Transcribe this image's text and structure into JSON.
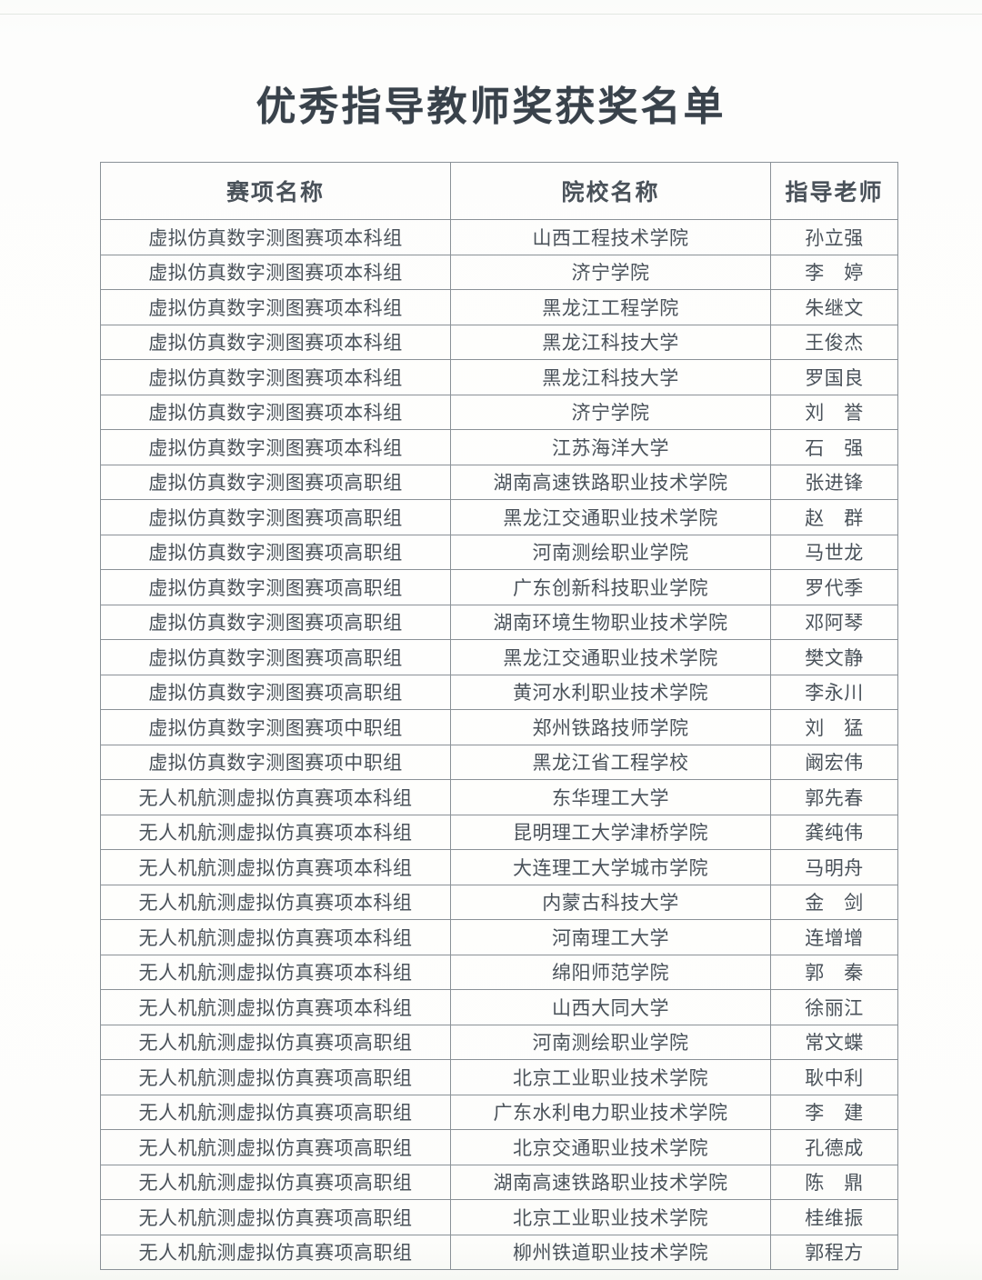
{
  "page": {
    "title": "优秀指导教师奖获奖名单"
  },
  "table": {
    "columns": [
      "赛项名称",
      "院校名称",
      "指导老师"
    ],
    "rows": [
      [
        "虚拟仿真数字测图赛项本科组",
        "山西工程技术学院",
        "孙立强"
      ],
      [
        "虚拟仿真数字测图赛项本科组",
        "济宁学院",
        "李　婷"
      ],
      [
        "虚拟仿真数字测图赛项本科组",
        "黑龙江工程学院",
        "朱继文"
      ],
      [
        "虚拟仿真数字测图赛项本科组",
        "黑龙江科技大学",
        "王俊杰"
      ],
      [
        "虚拟仿真数字测图赛项本科组",
        "黑龙江科技大学",
        "罗国良"
      ],
      [
        "虚拟仿真数字测图赛项本科组",
        "济宁学院",
        "刘　誉"
      ],
      [
        "虚拟仿真数字测图赛项本科组",
        "江苏海洋大学",
        "石　强"
      ],
      [
        "虚拟仿真数字测图赛项高职组",
        "湖南高速铁路职业技术学院",
        "张进锋"
      ],
      [
        "虚拟仿真数字测图赛项高职组",
        "黑龙江交通职业技术学院",
        "赵　群"
      ],
      [
        "虚拟仿真数字测图赛项高职组",
        "河南测绘职业学院",
        "马世龙"
      ],
      [
        "虚拟仿真数字测图赛项高职组",
        "广东创新科技职业学院",
        "罗代季"
      ],
      [
        "虚拟仿真数字测图赛项高职组",
        "湖南环境生物职业技术学院",
        "邓阿琴"
      ],
      [
        "虚拟仿真数字测图赛项高职组",
        "黑龙江交通职业技术学院",
        "樊文静"
      ],
      [
        "虚拟仿真数字测图赛项高职组",
        "黄河水利职业技术学院",
        "李永川"
      ],
      [
        "虚拟仿真数字测图赛项中职组",
        "郑州铁路技师学院",
        "刘　猛"
      ],
      [
        "虚拟仿真数字测图赛项中职组",
        "黑龙江省工程学校",
        "阚宏伟"
      ],
      [
        "无人机航测虚拟仿真赛项本科组",
        "东华理工大学",
        "郭先春"
      ],
      [
        "无人机航测虚拟仿真赛项本科组",
        "昆明理工大学津桥学院",
        "龚纯伟"
      ],
      [
        "无人机航测虚拟仿真赛项本科组",
        "大连理工大学城市学院",
        "马明舟"
      ],
      [
        "无人机航测虚拟仿真赛项本科组",
        "内蒙古科技大学",
        "金　剑"
      ],
      [
        "无人机航测虚拟仿真赛项本科组",
        "河南理工大学",
        "连增增"
      ],
      [
        "无人机航测虚拟仿真赛项本科组",
        "绵阳师范学院",
        "郭　秦"
      ],
      [
        "无人机航测虚拟仿真赛项本科组",
        "山西大同大学",
        "徐丽江"
      ],
      [
        "无人机航测虚拟仿真赛项高职组",
        "河南测绘职业学院",
        "常文蝶"
      ],
      [
        "无人机航测虚拟仿真赛项高职组",
        "北京工业职业技术学院",
        "耿中利"
      ],
      [
        "无人机航测虚拟仿真赛项高职组",
        "广东水利电力职业技术学院",
        "李　建"
      ],
      [
        "无人机航测虚拟仿真赛项高职组",
        "北京交通职业技术学院",
        "孔德成"
      ],
      [
        "无人机航测虚拟仿真赛项高职组",
        "湖南高速铁路职业技术学院",
        "陈　鼎"
      ],
      [
        "无人机航测虚拟仿真赛项高职组",
        "北京工业职业技术学院",
        "桂维振"
      ],
      [
        "无人机航测虚拟仿真赛项高职组",
        "柳州铁道职业技术学院",
        "郭程方"
      ]
    ]
  },
  "colors": {
    "text": "#4a525a",
    "title": "#39424b",
    "border": "#8a9197",
    "background": "#fdfdfc"
  }
}
